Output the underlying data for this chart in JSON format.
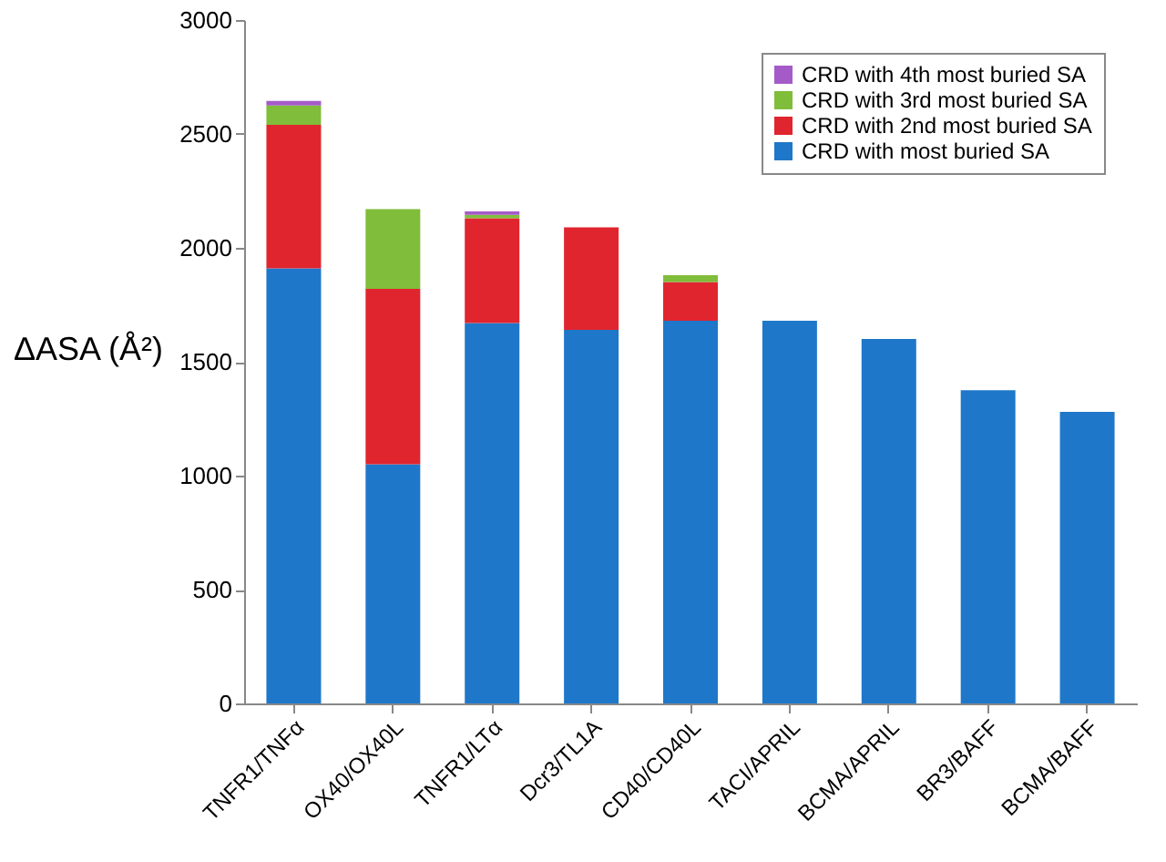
{
  "chart_data": {
    "type": "bar",
    "stacked": true,
    "ylabel": "ΔASA (Å²)",
    "categories": [
      "TNFR1/TNFα",
      "OX40/OX40L",
      "TNFR1/LTα",
      "Dcr3/TL1A",
      "CD40/CD40L",
      "TACI/APRIL",
      "BCMA/APRIL",
      "BR3/BAFF",
      "BCMA/BAFF"
    ],
    "series": [
      {
        "name": "CRD with most buried SA",
        "color": "#1f77c9",
        "values": [
          1910,
          1050,
          1670,
          1640,
          1680,
          1680,
          1600,
          1375,
          1280
        ]
      },
      {
        "name": "CRD with 2nd most buried SA",
        "color": "#e0252f",
        "values": [
          630,
          770,
          460,
          450,
          170,
          null,
          null,
          null,
          null
        ]
      },
      {
        "name": "CRD with 3rd most buried SA",
        "color": "#80bd3a",
        "values": [
          85,
          350,
          15,
          null,
          30,
          null,
          null,
          null,
          null
        ]
      },
      {
        "name": "CRD with 4th most buried SA",
        "color": "#a45bc8",
        "values": [
          20,
          null,
          15,
          null,
          null,
          null,
          null,
          null,
          null
        ]
      }
    ],
    "ylim": [
      0,
      3000
    ],
    "yticks": [
      0,
      500,
      1000,
      1500,
      2000,
      2500,
      3000
    ],
    "grid": false,
    "legend": "top right"
  }
}
